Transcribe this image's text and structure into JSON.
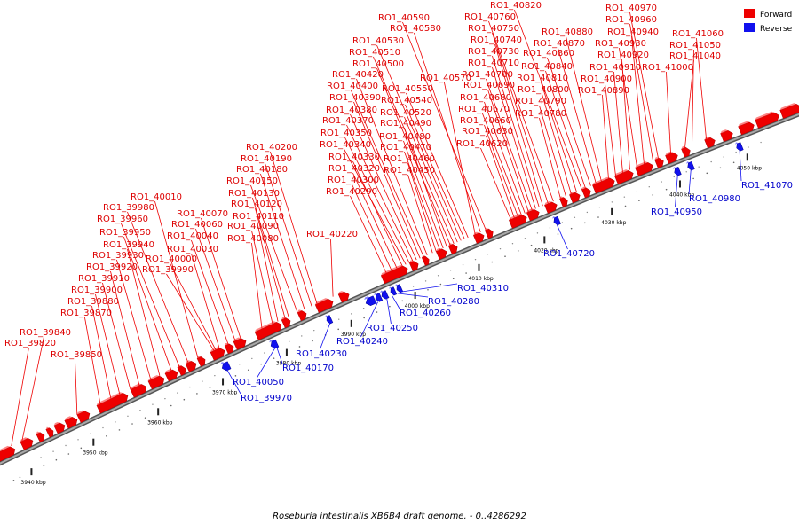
{
  "caption": "Roseburia intestinalis XB6B4 draft genome. - 0..4286292",
  "legend": [
    {
      "label": "Forward",
      "color": "#ee0000"
    },
    {
      "label": "Reverse",
      "color": "#1111ee"
    }
  ],
  "colors": {
    "forward": "#ee0000",
    "reverse": "#1111ee",
    "backbone": "#808080",
    "forward_label": "#dd0000",
    "reverse_label": "#0000cc"
  },
  "scale_ticks": [
    "3940 kbp",
    "3950 kbp",
    "3960 kbp",
    "3970 kbp",
    "3980 kbp",
    "3990 kbp",
    "4000 kbp",
    "4010 kbp",
    "4020 kbp",
    "4030 kbp",
    "4040 kbp",
    "4050 kbp"
  ],
  "forward_genes": [
    "RO1_39820",
    "RO1_39840",
    "RO1_39850",
    "RO1_39870",
    "RO1_39880",
    "RO1_39900",
    "RO1_39910",
    "RO1_39920",
    "RO1_39930",
    "RO1_39940",
    "RO1_39950",
    "RO1_39960",
    "RO1_39980",
    "RO1_40010",
    "RO1_39990",
    "RO1_40000",
    "RO1_40030",
    "RO1_40040",
    "RO1_40060",
    "RO1_40070",
    "RO1_40080",
    "RO1_40090",
    "RO1_40110",
    "RO1_40120",
    "RO1_40130",
    "RO1_40150",
    "RO1_40180",
    "RO1_40190",
    "RO1_40200",
    "RO1_40220",
    "RO1_40290",
    "RO1_40300",
    "RO1_40320",
    "RO1_40330",
    "RO1_40340",
    "RO1_40350",
    "RO1_40370",
    "RO1_40380",
    "RO1_40390",
    "RO1_40400",
    "RO1_40420",
    "RO1_40450",
    "RO1_40460",
    "RO1_40470",
    "RO1_40480",
    "RO1_40490",
    "RO1_40500",
    "RO1_40510",
    "RO1_40520",
    "RO1_40530",
    "RO1_40540",
    "RO1_40550",
    "RO1_40570",
    "RO1_40580",
    "RO1_40590",
    "RO1_40620",
    "RO1_40630",
    "RO1_40660",
    "RO1_40670",
    "RO1_40680",
    "RO1_40690",
    "RO1_40700",
    "RO1_40710",
    "RO1_40730",
    "RO1_40740",
    "RO1_40750",
    "RO1_40760",
    "RO1_40780",
    "RO1_40790",
    "RO1_40800",
    "RO1_40810",
    "RO1_40820",
    "RO1_40840",
    "RO1_40860",
    "RO1_40870",
    "RO1_40880",
    "RO1_40890",
    "RO1_40900",
    "RO1_40910",
    "RO1_40920",
    "RO1_40930",
    "RO1_40940",
    "RO1_40960",
    "RO1_40970",
    "RO1_41000",
    "RO1_41040",
    "RO1_41050",
    "RO1_41060"
  ],
  "reverse_genes": [
    "RO1_39970",
    "RO1_40050",
    "RO1_40170",
    "RO1_40230",
    "RO1_40240",
    "RO1_40250",
    "RO1_40260",
    "RO1_40280",
    "RO1_40310",
    "RO1_40720",
    "RO1_40950",
    "RO1_40980",
    "RO1_41070"
  ]
}
